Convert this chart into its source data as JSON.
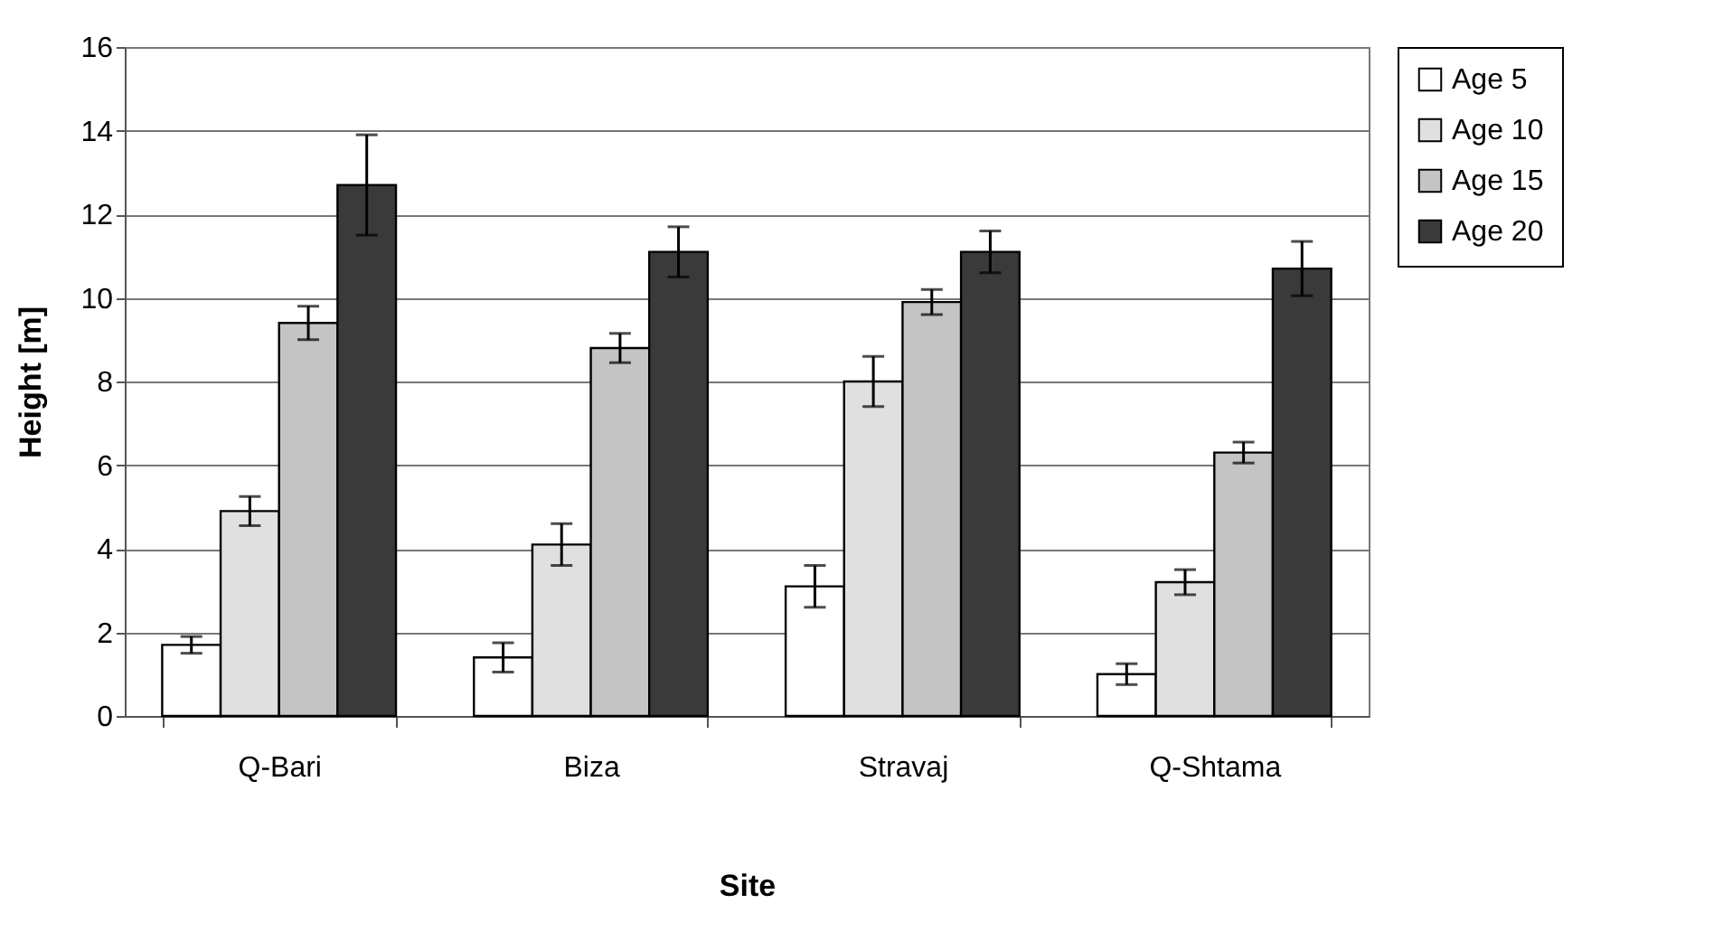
{
  "chart_data": {
    "type": "bar",
    "xlabel": "Site",
    "ylabel": "Height [m]",
    "categories": [
      "Q-Bari",
      "Biza",
      "Stravaj",
      "Q-Shtama"
    ],
    "series": [
      {
        "name": "Age 5",
        "color": "#ffffff",
        "values": [
          1.7,
          1.4,
          3.1,
          1.0
        ],
        "errors": [
          0.2,
          0.35,
          0.5,
          0.25
        ]
      },
      {
        "name": "Age 10",
        "color": "#e0e0e0",
        "values": [
          4.9,
          4.1,
          8.0,
          3.2
        ],
        "errors": [
          0.35,
          0.5,
          0.6,
          0.3
        ]
      },
      {
        "name": "Age 15",
        "color": "#c4c4c4",
        "values": [
          9.4,
          8.8,
          9.9,
          6.3
        ],
        "errors": [
          0.4,
          0.35,
          0.3,
          0.25
        ]
      },
      {
        "name": "Age 20",
        "color": "#3a3a3a",
        "values": [
          12.7,
          11.1,
          11.1,
          10.7
        ],
        "errors": [
          1.2,
          0.6,
          0.5,
          0.65
        ]
      }
    ],
    "ylim": [
      0,
      16
    ],
    "yticks": [
      0,
      2,
      4,
      6,
      8,
      10,
      12,
      14,
      16
    ],
    "grid": "y",
    "legend": "right"
  }
}
